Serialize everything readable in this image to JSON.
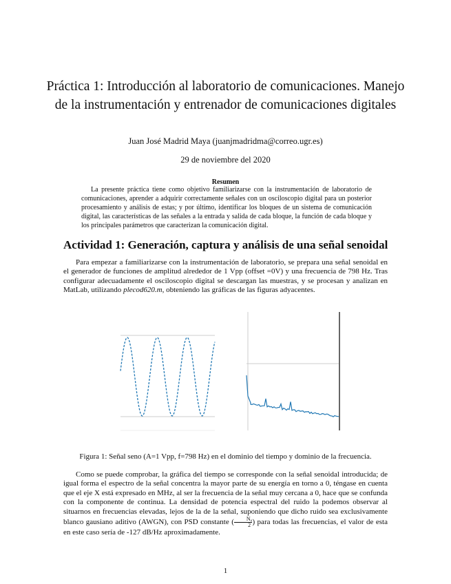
{
  "title": "Práctica 1: Introducción al laboratorio de comunicaciones. Manejo de la instrumentación y entrenador de comunicaciones digitales",
  "author": "Juan José Madrid Maya (juanjmadridma@correo.ugr.es)",
  "date": "29 de noviembre del 2020",
  "abstract": {
    "heading": "Resumen",
    "text": "La presente práctica tiene como objetivo familiarizarse con la instrumentación de laboratorio de comunicaciones, aprender a adquirir correctamente señales con un osciloscopio digital para un posterior procesamiento y análisis de estas; y por último, identificar los bloques de un sistema de comunicación digital, las características de las señales a la entrada y salida de cada bloque, la función de cada bloque y los principales parámetros que caracterizan la comunicación digital."
  },
  "section": {
    "heading": "Actividad 1: Generación, captura y análisis de una señal senoidal",
    "p1_before": "Para empezar a familiarizarse con la instrumentación de laboratorio, se prepara una señal senoidal en el generador de funciones de amplitud alrededor de 1 Vpp (offset =0V) y una frecuencia de 798 Hz. Tras configurar adecuadamente el osciloscopio digital se descargan las muestras, y se procesan y analizan en MatLab, utilizando ",
    "p1_italic": "plecod620.m",
    "p1_after": ", obteniendo las gráficas de las figuras adyacentes.",
    "caption": "Figura 1: Señal seno (A=1 Vpp, f=798 Hz) en el dominio del tiempo y dominio de la frecuencia.",
    "p2_before": "Como se puede comprobar, la gráfica del tiempo se corresponde con la señal senoidal introducida; de igual forma el espectro de la señal concentra la mayor parte de su energía en torno a 0, téngase en cuenta que el eje X está expresado en MHz, al ser la frecuencia de la señal muy cercana a 0, hace que se confunda con la componente de continua. La densidad de potencia espectral del ruido la podemos observar al situarnos en frecuencias elevadas, lejos de la de la señal, suponiendo que dicho ruido sea exclusivamente blanco gausiano aditivo (AWGN), con PSD constante (",
    "p2_frac_num": "N₀",
    "p2_frac_den": "2",
    "p2_after": ") para todas las frecuencias, el valor de esta en este caso sería de -127 dB/Hz aproximadamente."
  },
  "page_number": "1",
  "colors": {
    "series": "#1f77b4",
    "grid": "#cccccc"
  }
}
